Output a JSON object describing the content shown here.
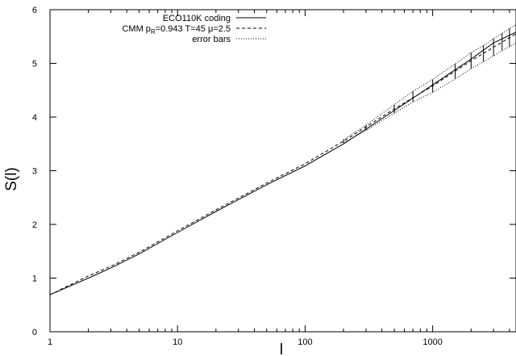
{
  "chart_data": {
    "type": "line",
    "xlabel": "l",
    "ylabel": "S(l)",
    "x_scale": "log",
    "xlim": [
      1,
      4500
    ],
    "ylim": [
      0,
      6
    ],
    "x_ticks": [
      1,
      10,
      100,
      1000
    ],
    "x_tick_labels": [
      "1",
      "10",
      "100",
      "1000"
    ],
    "y_ticks": [
      0,
      1,
      2,
      3,
      4,
      5,
      6
    ],
    "y_tick_labels": [
      "0",
      "1",
      "2",
      "3",
      "4",
      "5",
      "6"
    ],
    "grid": false,
    "legend_position": "top-right",
    "series": [
      {
        "name": "ECO110K coding",
        "style": "solid",
        "x": [
          1,
          2,
          3,
          5,
          10,
          20,
          50,
          100,
          200,
          500,
          1000,
          2000,
          3000,
          4500
        ],
        "y": [
          0.69,
          1.0,
          1.19,
          1.45,
          1.85,
          2.24,
          2.74,
          3.09,
          3.5,
          4.12,
          4.6,
          5.08,
          5.38,
          5.58
        ]
      },
      {
        "name": "CMM p_R=0.943 T=45 μ=2.5",
        "style": "dashed",
        "x": [
          1,
          2,
          3,
          5,
          10,
          20,
          50,
          100,
          200,
          500,
          1000,
          2000,
          3000,
          4500
        ],
        "y": [
          0.69,
          1.04,
          1.22,
          1.48,
          1.88,
          2.27,
          2.77,
          3.13,
          3.55,
          4.15,
          4.58,
          5.05,
          5.3,
          5.55
        ]
      },
      {
        "name": "error bars",
        "style": "dotted",
        "x": [
          200,
          300,
          500,
          700,
          1000,
          1500,
          2000,
          2500,
          3000,
          3500,
          4000,
          4500
        ],
        "y": [
          3.55,
          3.8,
          4.15,
          4.38,
          4.58,
          4.85,
          5.05,
          5.18,
          5.3,
          5.4,
          5.48,
          5.55
        ],
        "err": [
          0.03,
          0.05,
          0.08,
          0.1,
          0.12,
          0.14,
          0.15,
          0.15,
          0.16,
          0.16,
          0.17,
          0.17
        ]
      }
    ]
  },
  "legend": {
    "entry1": "ECO110K coding",
    "entry2_prefix": "CMM p",
    "entry2_sub": "R",
    "entry2_suffix": "=0.943 T=45 μ=2.5",
    "entry3": "error bars"
  }
}
